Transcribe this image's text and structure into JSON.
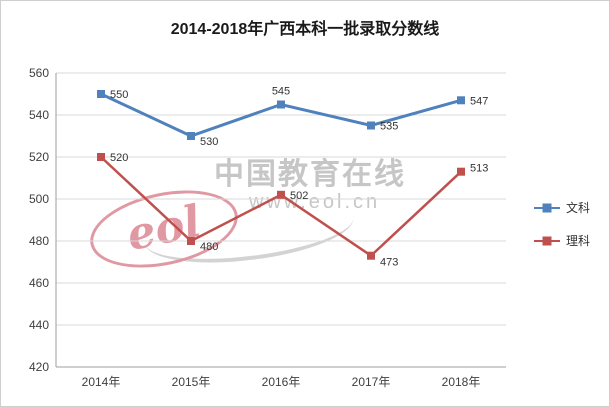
{
  "chart_data": {
    "type": "line",
    "title": "2014-2018年广西本科一批录取分数线",
    "categories": [
      "2014年",
      "2015年",
      "2016年",
      "2017年",
      "2018年"
    ],
    "series": [
      {
        "name": "文科",
        "color": "#4F81BD",
        "values": [
          550,
          530,
          545,
          535,
          547
        ]
      },
      {
        "name": "理科",
        "color": "#C0504D",
        "values": [
          520,
          480,
          502,
          473,
          513
        ]
      }
    ],
    "ylim": [
      420,
      560
    ],
    "yticks": [
      420,
      440,
      460,
      480,
      500,
      520,
      540,
      560
    ],
    "grid": true,
    "legend_position": "right"
  },
  "watermark": {
    "logo_text": "eol",
    "line1": "中国教育在线",
    "line2": "www.eol.cn"
  }
}
